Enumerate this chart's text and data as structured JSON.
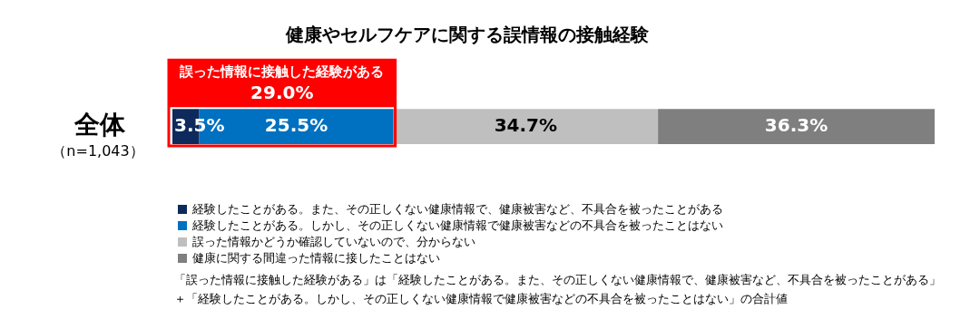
{
  "chart_data": {
    "type": "bar",
    "title": "健康やセルフケアに関する誤情報の接触経験",
    "orientation": "horizontal",
    "stacked": true,
    "categories": [
      "全体"
    ],
    "xlim": [
      0,
      100
    ],
    "tick_labels": "y",
    "grid": false,
    "legend": "bottom left",
    "series": [
      {
        "name": "経験したことがある。また、その正しくない健康情報で、健康被害など、不具合を被ったことがある",
        "color": "#0e2a5c",
        "values": [
          3.5
        ],
        "value_labels": [
          "3.5%"
        ]
      },
      {
        "name": "経験したことがある。しかし、その正しくない健康情報で健康被害などの不具合を被ったことはない",
        "color": "#0070c0",
        "values": [
          25.5
        ],
        "value_labels": [
          "25.5%"
        ]
      },
      {
        "name": "誤った情報かどうか確認していないので、分からない",
        "color": "#bfbfbf",
        "values": [
          34.7
        ],
        "value_labels": [
          "34.7%"
        ]
      },
      {
        "name": "健康に関する間違った情報に接したことはない",
        "color": "#7f7f7f",
        "values": [
          36.3
        ],
        "value_labels": [
          "36.3%"
        ]
      }
    ],
    "bands": [
      {
        "axis": "x",
        "from": 0,
        "to": 29.0,
        "label": "誤った情報に接触した経験がある\n29.0%",
        "color": "#ff0000"
      }
    ],
    "annotations": [
      "（n=1,043）",
      "「誤った情報に接触した経験がある」は「経験したことがある。また、その正しくない健康情報で、健康被害など、不具合を被ったことがある」",
      "＋「経験したことがある。しかし、その正しくない健康情報で健康被害などの不具合を被ったことはない」の合計値"
    ]
  }
}
